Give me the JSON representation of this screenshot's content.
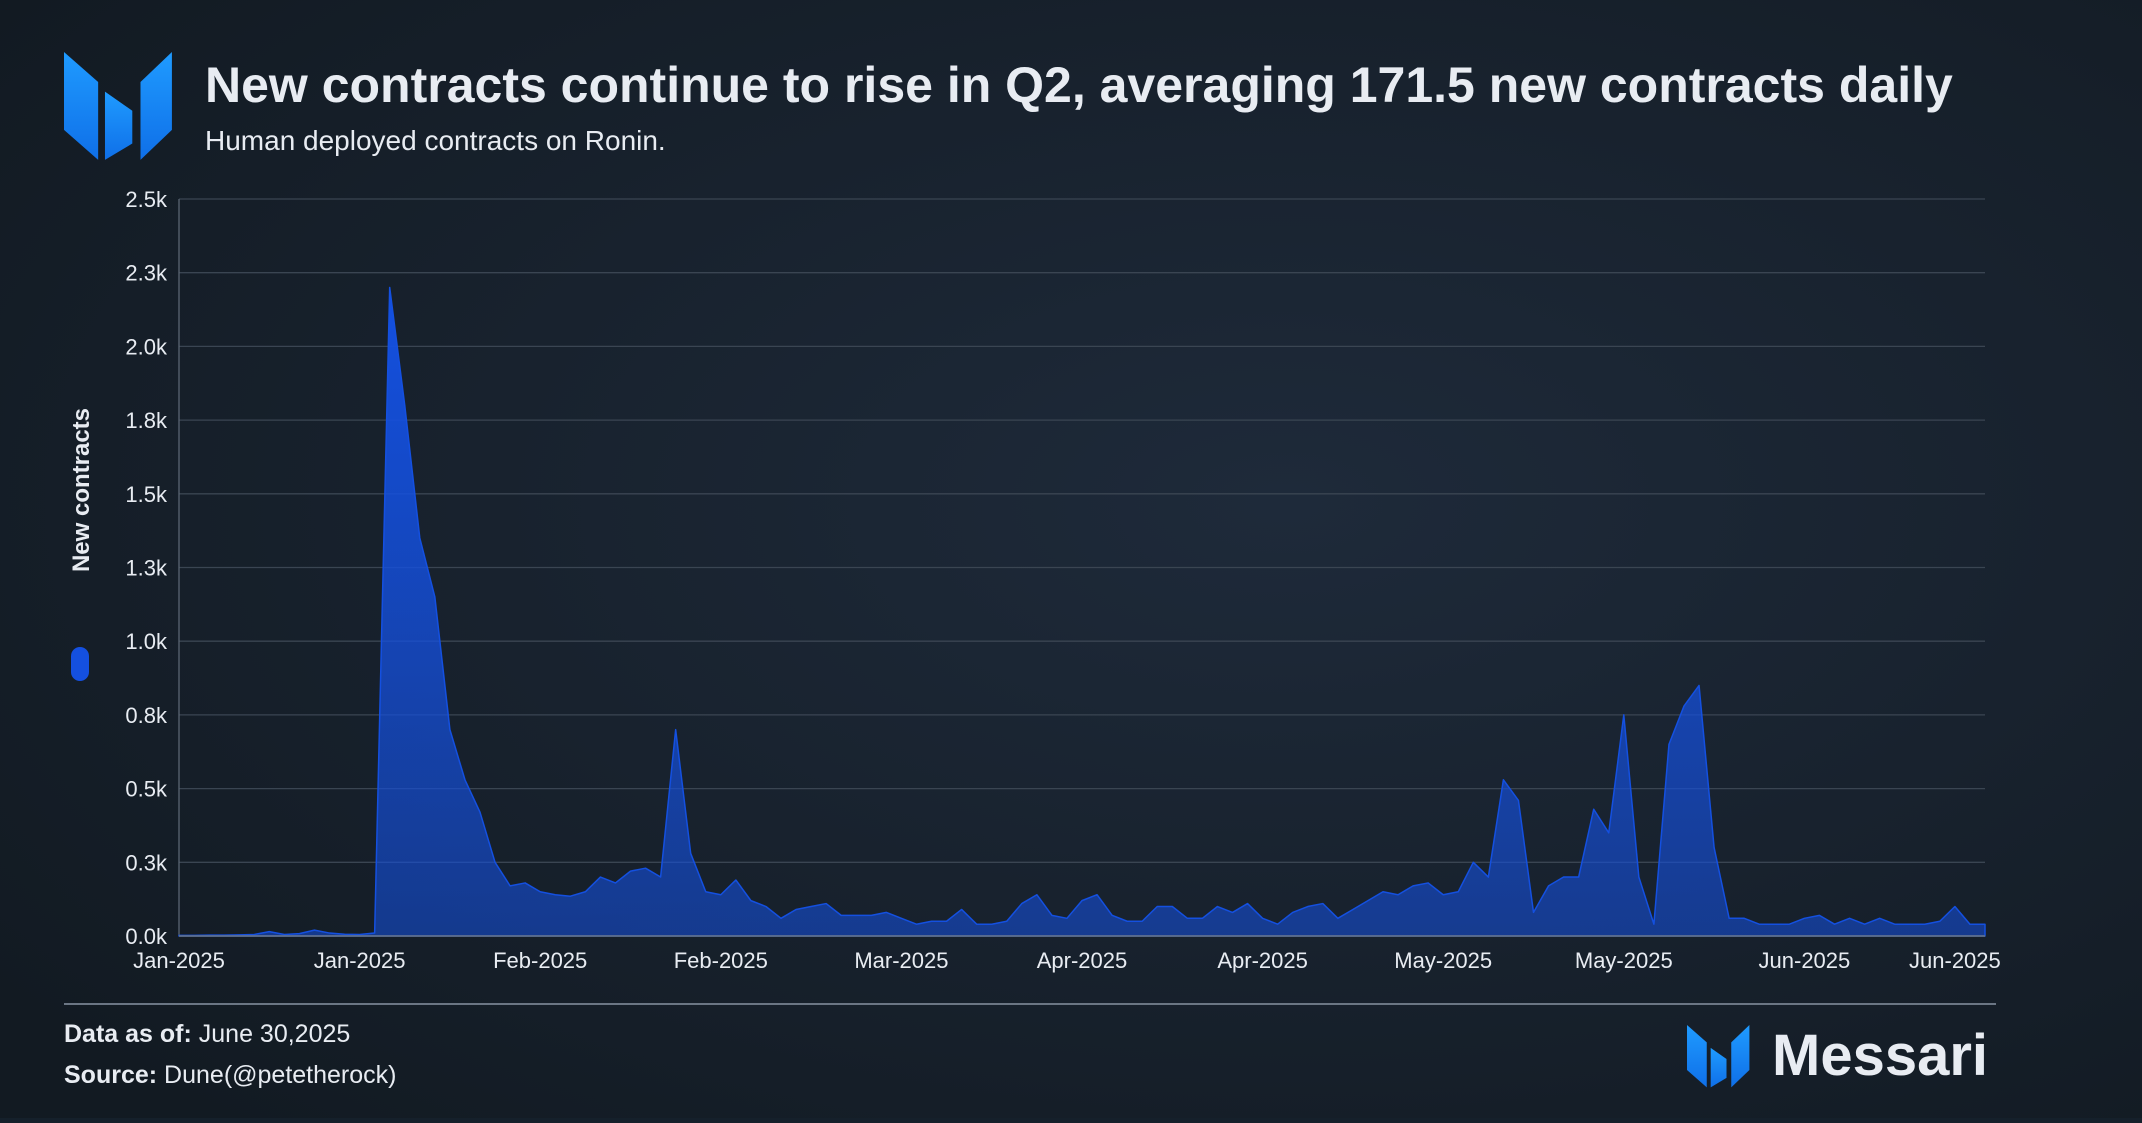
{
  "chart_data": {
    "type": "area",
    "title": "New contracts continue to rise in Q2, averaging 171.5 new contracts daily",
    "subtitle": "Human deployed contracts on Ronin.",
    "y_label": "New contracts",
    "categories": [
      "Jan-2025",
      null,
      null,
      null,
      null,
      null,
      null,
      null,
      null,
      null,
      null,
      null,
      "Jan-2025",
      null,
      null,
      null,
      null,
      null,
      null,
      null,
      null,
      null,
      null,
      null,
      "Feb-2025",
      null,
      null,
      null,
      null,
      null,
      null,
      null,
      null,
      null,
      null,
      null,
      "Feb-2025",
      null,
      null,
      null,
      null,
      null,
      null,
      null,
      null,
      null,
      null,
      null,
      "Mar-2025",
      null,
      null,
      null,
      null,
      null,
      null,
      null,
      null,
      null,
      null,
      null,
      "Apr-2025",
      null,
      null,
      null,
      null,
      null,
      null,
      null,
      null,
      null,
      null,
      null,
      "Apr-2025",
      null,
      null,
      null,
      null,
      null,
      null,
      null,
      null,
      null,
      null,
      null,
      "May-2025",
      null,
      null,
      null,
      null,
      null,
      null,
      null,
      null,
      null,
      null,
      null,
      "May-2025",
      null,
      null,
      null,
      null,
      null,
      null,
      null,
      null,
      null,
      null,
      null,
      "Jun-2025",
      null,
      null,
      null,
      null,
      null,
      null,
      null,
      null,
      null,
      "Jun-2025",
      null,
      null
    ],
    "series": [
      {
        "name": "New contracts",
        "color": "#1450e0",
        "values": [
          2,
          2,
          3,
          3,
          4,
          5,
          15,
          5,
          8,
          20,
          10,
          6,
          5,
          10,
          2200,
          1800,
          1350,
          1150,
          700,
          530,
          420,
          250,
          170,
          180,
          150,
          140,
          135,
          150,
          200,
          180,
          220,
          230,
          200,
          700,
          280,
          150,
          140,
          190,
          120,
          100,
          60,
          90,
          100,
          110,
          70,
          70,
          70,
          80,
          60,
          40,
          50,
          50,
          90,
          40,
          40,
          50,
          110,
          140,
          70,
          60,
          120,
          140,
          70,
          50,
          50,
          100,
          100,
          60,
          60,
          100,
          80,
          110,
          60,
          40,
          80,
          100,
          110,
          60,
          90,
          120,
          150,
          140,
          170,
          180,
          140,
          150,
          250,
          200,
          530,
          460,
          80,
          170,
          200,
          200,
          430,
          350,
          750,
          200,
          40,
          650,
          780,
          850,
          300,
          60,
          60,
          40,
          40,
          40,
          60,
          70,
          40,
          60,
          40,
          60,
          40,
          40,
          40,
          50,
          100,
          40,
          40
        ]
      }
    ],
    "ylim": [
      0,
      2500
    ],
    "yticks": [
      {
        "value": 0,
        "label": "0.0k"
      },
      {
        "value": 250,
        "label": "0.3k"
      },
      {
        "value": 500,
        "label": "0.5k"
      },
      {
        "value": 750,
        "label": "0.8k"
      },
      {
        "value": 1000,
        "label": "1.0k"
      },
      {
        "value": 1250,
        "label": "1.3k"
      },
      {
        "value": 1500,
        "label": "1.5k"
      },
      {
        "value": 1750,
        "label": "1.8k"
      },
      {
        "value": 2000,
        "label": "2.0k"
      },
      {
        "value": 2250,
        "label": "2.3k"
      },
      {
        "value": 2500,
        "label": "2.5k"
      }
    ],
    "grid": true
  },
  "footer": {
    "data_as_of_label": "Data as of:",
    "data_as_of": "June 30,2025",
    "source_label": "Source:",
    "source": "Dune(@petetherock)",
    "brand": "Messari"
  }
}
